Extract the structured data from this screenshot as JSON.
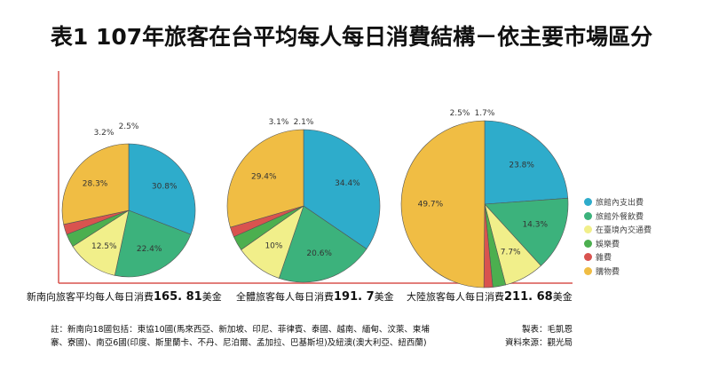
{
  "title": "表1 107年旅客在台平均每人每日消費結構－依主要市場區分",
  "colors": {
    "axis": "#d9534f"
  },
  "chart_data": {
    "type": "pie",
    "legend_position": "right",
    "categories": [
      "旅館內支出費",
      "旅館外餐飲費",
      "在臺境內交通費",
      "娛樂費",
      "雜費",
      "購物費"
    ],
    "category_colors": [
      "#2eaccb",
      "#3cb27c",
      "#f1ef8a",
      "#4caf4f",
      "#d9534f",
      "#f0bd44"
    ],
    "pies": [
      {
        "caption": "新南向旅客平均每人每日消費",
        "amount": "165. 81",
        "unit": "美金",
        "values": [
          30.8,
          22.4,
          12.5,
          3.2,
          2.5,
          28.3
        ]
      },
      {
        "caption": "全體旅客每人每日消費",
        "amount": "191. 7",
        "unit": "美金",
        "values": [
          34.4,
          20.6,
          10,
          3.1,
          2.1,
          29.4
        ]
      },
      {
        "caption": "大陸旅客每人每日消費",
        "amount": "211. 68",
        "unit": "美金",
        "values": [
          23.8,
          14.3,
          7.7,
          2.5,
          1.7,
          49.7
        ]
      }
    ]
  },
  "note": "註：新南向18國包括：東協10國(馬來西亞、新加坡、印尼、菲律賓、泰國、越南、緬甸、汶萊、柬埔寨、寮國)、南亞6國(印度、斯里蘭卡、不丹、尼泊爾、孟加拉、巴基斯坦)及紐澳(澳大利亞、紐西蘭)",
  "maker": "製表：毛凱恩",
  "source": "資料來源：觀光局"
}
